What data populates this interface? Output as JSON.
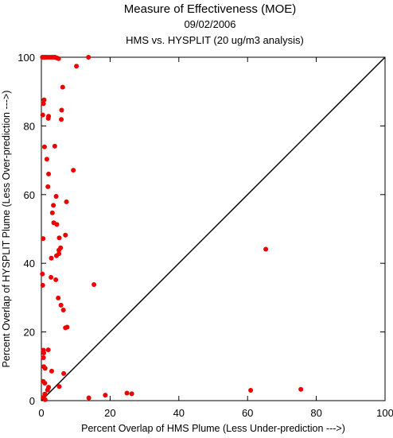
{
  "chart_data": {
    "type": "scatter",
    "title": "Measure of Effectiveness (MOE)",
    "subtitle_date": "09/02/2006",
    "subtitle_analysis": "HMS vs. HYSPLIT  (20 ug/m3 analysis)",
    "xlabel": "Percent Overlap of HMS Plume (Less Under-prediction --->)",
    "ylabel": "Percent Overlap of HYSPLIT Plume (Less Over-prediction --->)",
    "xlim": [
      0,
      100
    ],
    "ylim": [
      0,
      100
    ],
    "xticks": [
      0,
      20,
      40,
      60,
      80,
      100
    ],
    "yticks": [
      0,
      20,
      40,
      60,
      80,
      100
    ],
    "grid": false,
    "reference_line": "y = x",
    "point_color": "#ee0000",
    "line_color": "#000000",
    "points": [
      {
        "x": 0.3,
        "y": 100
      },
      {
        "x": 0.7,
        "y": 100
      },
      {
        "x": 1.0,
        "y": 100
      },
      {
        "x": 1.4,
        "y": 100
      },
      {
        "x": 1.9,
        "y": 100
      },
      {
        "x": 2.5,
        "y": 100
      },
      {
        "x": 3.0,
        "y": 100
      },
      {
        "x": 3.5,
        "y": 100
      },
      {
        "x": 4.0,
        "y": 100
      },
      {
        "x": 4.5,
        "y": 99.8
      },
      {
        "x": 5.0,
        "y": 99.6
      },
      {
        "x": 13.7,
        "y": 100
      },
      {
        "x": 10.2,
        "y": 97.4
      },
      {
        "x": 6.2,
        "y": 91.3
      },
      {
        "x": 0.8,
        "y": 87.6
      },
      {
        "x": 0.6,
        "y": 86.5
      },
      {
        "x": 5.9,
        "y": 84.6
      },
      {
        "x": 0.4,
        "y": 83.2
      },
      {
        "x": 2.1,
        "y": 82.8
      },
      {
        "x": 2.0,
        "y": 82.2
      },
      {
        "x": 5.8,
        "y": 81.9
      },
      {
        "x": 0.9,
        "y": 73.9
      },
      {
        "x": 3.9,
        "y": 74.1
      },
      {
        "x": 1.6,
        "y": 70.3
      },
      {
        "x": 9.3,
        "y": 67.1
      },
      {
        "x": 2.1,
        "y": 66.0
      },
      {
        "x": 1.9,
        "y": 62.3
      },
      {
        "x": 4.3,
        "y": 59.5
      },
      {
        "x": 7.3,
        "y": 57.9
      },
      {
        "x": 3.5,
        "y": 56.9
      },
      {
        "x": 3.2,
        "y": 54.7
      },
      {
        "x": 3.6,
        "y": 51.8
      },
      {
        "x": 4.5,
        "y": 51.3
      },
      {
        "x": 7.0,
        "y": 48.2
      },
      {
        "x": 5.2,
        "y": 47.4
      },
      {
        "x": 0.5,
        "y": 47.2
      },
      {
        "x": 5.6,
        "y": 44.5
      },
      {
        "x": 5.1,
        "y": 43.8
      },
      {
        "x": 5.1,
        "y": 42.8
      },
      {
        "x": 4.4,
        "y": 42.2
      },
      {
        "x": 2.9,
        "y": 41.5
      },
      {
        "x": 65.3,
        "y": 44.1
      },
      {
        "x": 0.3,
        "y": 36.9
      },
      {
        "x": 2.8,
        "y": 35.9
      },
      {
        "x": 4.2,
        "y": 35.2
      },
      {
        "x": 15.3,
        "y": 33.8
      },
      {
        "x": 0.4,
        "y": 33.6
      },
      {
        "x": 4.9,
        "y": 29.9
      },
      {
        "x": 5.7,
        "y": 27.8
      },
      {
        "x": 6.4,
        "y": 26.4
      },
      {
        "x": 7.5,
        "y": 21.4
      },
      {
        "x": 7.0,
        "y": 21.2
      },
      {
        "x": 2.0,
        "y": 14.8
      },
      {
        "x": 0.6,
        "y": 14.7
      },
      {
        "x": 0.7,
        "y": 13.9
      },
      {
        "x": 0.6,
        "y": 12.5
      },
      {
        "x": 0.7,
        "y": 9.9
      },
      {
        "x": 1.1,
        "y": 9.4
      },
      {
        "x": 3.0,
        "y": 8.6
      },
      {
        "x": 6.5,
        "y": 7.9
      },
      {
        "x": 0.5,
        "y": 5.6
      },
      {
        "x": 1.0,
        "y": 5.1
      },
      {
        "x": 2.1,
        "y": 3.9
      },
      {
        "x": 1.8,
        "y": 3.1
      },
      {
        "x": 5.2,
        "y": 4.1
      },
      {
        "x": 1.0,
        "y": 1.9
      },
      {
        "x": 0.5,
        "y": 0.9
      },
      {
        "x": 1.1,
        "y": 0.3
      },
      {
        "x": 13.8,
        "y": 0.8
      },
      {
        "x": 18.6,
        "y": 1.6
      },
      {
        "x": 24.9,
        "y": 2.2
      },
      {
        "x": 26.3,
        "y": 2.0
      },
      {
        "x": 60.9,
        "y": 3.0
      },
      {
        "x": 75.5,
        "y": 3.3
      }
    ]
  }
}
